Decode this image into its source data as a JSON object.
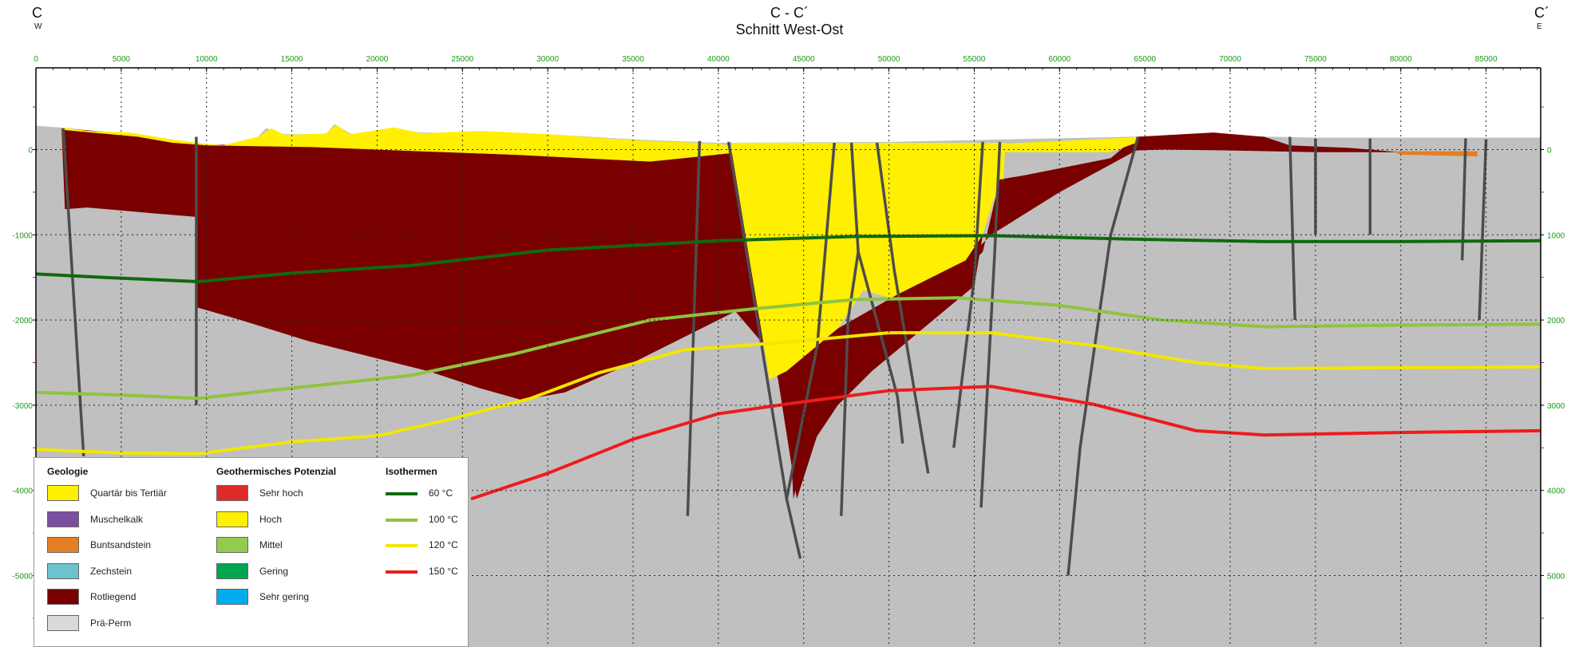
{
  "header": {
    "title": "C - C´",
    "subtitle": "Schnitt West-Ost",
    "left_label": "C",
    "left_dir": "W",
    "right_label": "C´",
    "right_dir": "E"
  },
  "section": {
    "x_range": [
      0,
      88200
    ],
    "depth_range": [
      -5850,
      1050
    ],
    "x_ticks": [
      0,
      5000,
      10000,
      15000,
      20000,
      25000,
      30000,
      35000,
      40000,
      45000,
      50000,
      55000,
      60000,
      65000,
      70000,
      75000,
      80000,
      85000
    ],
    "x_tick_labels": [
      "0",
      "5000",
      "10000",
      "15000",
      "20000",
      "25000",
      "30000",
      "35000",
      "40000",
      "45000",
      "50000",
      "55000",
      "60000",
      "65000",
      "70000",
      "75000",
      "80000",
      "85000"
    ],
    "depth_ticks": [
      0,
      -1000,
      -2000,
      -3000,
      -4000,
      -5000
    ],
    "depth_tick_labels": [
      "0",
      "-1000",
      "-2000",
      "-3000",
      "-4000",
      "-5000"
    ],
    "right_depth_tick_labels": [
      "0",
      "1000",
      "2000",
      "3000",
      "4000",
      "5000"
    ],
    "axis_label_color": "#1a9a1a",
    "grid": "dotted"
  },
  "geology": {
    "topography": [
      [
        0,
        280
      ],
      [
        2000,
        250
      ],
      [
        4000,
        200
      ],
      [
        6000,
        180
      ],
      [
        8000,
        100
      ],
      [
        11000,
        50
      ],
      [
        13000,
        150
      ],
      [
        13500,
        250
      ],
      [
        14500,
        180
      ],
      [
        17000,
        180
      ],
      [
        17500,
        300
      ],
      [
        18500,
        180
      ],
      [
        21000,
        250
      ],
      [
        22500,
        200
      ],
      [
        30000,
        180
      ],
      [
        35000,
        120
      ],
      [
        40000,
        80
      ],
      [
        50000,
        90
      ],
      [
        64000,
        150
      ],
      [
        66000,
        160
      ],
      [
        70000,
        160
      ],
      [
        75000,
        140
      ],
      [
        88200,
        140
      ]
    ],
    "rotliegend_polygon": [
      [
        1500,
        250
      ],
      [
        6000,
        180
      ],
      [
        8000,
        100
      ],
      [
        10000,
        60
      ],
      [
        16000,
        40
      ],
      [
        20000,
        0
      ],
      [
        28000,
        -60
      ],
      [
        30000,
        -80
      ],
      [
        32000,
        -100
      ],
      [
        36000,
        -140
      ],
      [
        38000,
        -100
      ],
      [
        40000,
        -40
      ],
      [
        40800,
        -40
      ],
      [
        42000,
        -1500
      ],
      [
        42800,
        -2700
      ],
      [
        47500,
        -2400
      ],
      [
        52000,
        -2100
      ],
      [
        54000,
        -1800
      ],
      [
        55500,
        -1400
      ],
      [
        56500,
        -900
      ],
      [
        58000,
        -600
      ],
      [
        63000,
        -150
      ],
      [
        64500,
        150
      ],
      [
        69000,
        200
      ],
      [
        72000,
        150
      ],
      [
        75000,
        50
      ],
      [
        77000,
        20
      ],
      [
        80000,
        -50
      ],
      [
        85000,
        -80
      ],
      [
        86000,
        100
      ],
      [
        88200,
        100
      ],
      [
        88200,
        -5850
      ],
      [
        0,
        -5850
      ],
      [
        0,
        250
      ],
      [
        1600,
        250
      ],
      [
        1700,
        -700
      ],
      [
        3000,
        -680
      ],
      [
        7000,
        -750
      ],
      [
        9400,
        -790
      ],
      [
        9400,
        -2900
      ],
      [
        9400,
        -1850
      ],
      [
        12000,
        -2000
      ],
      [
        16000,
        -2250
      ],
      [
        20000,
        -2450
      ],
      [
        23000,
        -2600
      ],
      [
        26000,
        -2800
      ],
      [
        28500,
        -2940
      ],
      [
        31000,
        -2850
      ],
      [
        35000,
        -2500
      ],
      [
        38000,
        -2200
      ],
      [
        41000,
        -1900
      ],
      [
        43000,
        -1800
      ],
      [
        44000,
        -1800
      ],
      [
        50000,
        -1500
      ],
      [
        55000,
        -900
      ],
      [
        58000,
        -600
      ]
    ],
    "yellow_basin": [
      [
        40800,
        80
      ],
      [
        56800,
        80
      ],
      [
        56700,
        -350
      ],
      [
        56000,
        -900
      ],
      [
        55200,
        -1000
      ],
      [
        54800,
        -1600
      ],
      [
        52000,
        -2000
      ],
      [
        49000,
        -1800
      ],
      [
        47000,
        -2000
      ],
      [
        43500,
        -2700
      ],
      [
        42000,
        -1500
      ],
      [
        40800,
        -40
      ]
    ],
    "yellow_band": [
      [
        1500,
        260
      ],
      [
        3000,
        220
      ],
      [
        5500,
        200
      ],
      [
        8000,
        120
      ],
      [
        9500,
        80
      ],
      [
        11000,
        50
      ],
      [
        13000,
        150
      ],
      [
        13800,
        250
      ],
      [
        14600,
        170
      ],
      [
        17000,
        190
      ],
      [
        17600,
        290
      ],
      [
        18400,
        180
      ],
      [
        21000,
        260
      ],
      [
        22600,
        190
      ],
      [
        26000,
        220
      ],
      [
        30000,
        180
      ],
      [
        35000,
        110
      ],
      [
        40000,
        70
      ],
      [
        40800,
        40
      ],
      [
        56800,
        70
      ],
      [
        62000,
        120
      ],
      [
        64000,
        140
      ],
      [
        64500,
        150
      ],
      [
        64500,
        80
      ],
      [
        63000,
        -30
      ],
      [
        56800,
        -30
      ],
      [
        56700,
        -350
      ],
      [
        45000,
        -30
      ],
      [
        40800,
        -40
      ],
      [
        36000,
        -140
      ],
      [
        32000,
        -100
      ],
      [
        28000,
        -60
      ],
      [
        20000,
        0
      ],
      [
        16000,
        30
      ],
      [
        10000,
        50
      ],
      [
        8000,
        80
      ],
      [
        6000,
        150
      ],
      [
        1600,
        230
      ]
    ],
    "zechstein_polygon": [
      [
        79500,
        -30
      ],
      [
        85000,
        -30
      ],
      [
        85000,
        -80
      ],
      [
        80000,
        -60
      ]
    ],
    "faults": [
      [
        [
          1600,
          250
        ],
        [
          2800,
          -3600
        ]
      ],
      [
        [
          9400,
          150
        ],
        [
          9400,
          -3000
        ]
      ],
      [
        [
          38900,
          100
        ],
        [
          38200,
          -4300
        ]
      ],
      [
        [
          40600,
          90
        ],
        [
          44000,
          -4100
        ],
        [
          44800,
          -4800
        ]
      ],
      [
        [
          46800,
          80
        ],
        [
          45800,
          -2300
        ],
        [
          44000,
          -4100
        ]
      ],
      [
        [
          47800,
          80
        ],
        [
          48200,
          -1200
        ],
        [
          50500,
          -2900
        ],
        [
          50800,
          -3450
        ]
      ],
      [
        [
          49300,
          80
        ],
        [
          50300,
          -1400
        ],
        [
          52300,
          -3800
        ]
      ],
      [
        [
          48200,
          -1200
        ],
        [
          47600,
          -2000
        ],
        [
          47200,
          -4300
        ]
      ],
      [
        [
          55500,
          90
        ],
        [
          55000,
          -1500
        ],
        [
          53800,
          -3500
        ]
      ],
      [
        [
          56500,
          90
        ],
        [
          56200,
          -1200
        ],
        [
          55400,
          -4200
        ]
      ],
      [
        [
          64600,
          150
        ],
        [
          63000,
          -1000
        ],
        [
          61200,
          -3500
        ],
        [
          60500,
          -5000
        ]
      ],
      [
        [
          73500,
          150
        ],
        [
          73800,
          -2000
        ]
      ],
      [
        [
          75000,
          130
        ],
        [
          75000,
          -1000
        ]
      ],
      [
        [
          78200,
          130
        ],
        [
          78200,
          -1000
        ]
      ],
      [
        [
          83800,
          130
        ],
        [
          83600,
          -1300
        ]
      ],
      [
        [
          85000,
          120
        ],
        [
          84600,
          -2000
        ]
      ]
    ]
  },
  "isotherms": [
    {
      "name": "60 °C",
      "color": "#0f6a0f",
      "points": [
        [
          0,
          -1460
        ],
        [
          4000,
          -1500
        ],
        [
          9500,
          -1550
        ],
        [
          15000,
          -1450
        ],
        [
          22000,
          -1360
        ],
        [
          30000,
          -1180
        ],
        [
          40000,
          -1070
        ],
        [
          48000,
          -1020
        ],
        [
          56000,
          -1010
        ],
        [
          64000,
          -1050
        ],
        [
          72000,
          -1080
        ],
        [
          80000,
          -1080
        ],
        [
          88200,
          -1070
        ]
      ]
    },
    {
      "name": "100 °C",
      "color": "#8fc43f",
      "points": [
        [
          0,
          -2850
        ],
        [
          5000,
          -2880
        ],
        [
          9500,
          -2920
        ],
        [
          15000,
          -2800
        ],
        [
          22000,
          -2650
        ],
        [
          28000,
          -2400
        ],
        [
          36000,
          -2000
        ],
        [
          42000,
          -1870
        ],
        [
          48000,
          -1760
        ],
        [
          54000,
          -1740
        ],
        [
          60000,
          -1830
        ],
        [
          66000,
          -2000
        ],
        [
          72000,
          -2080
        ],
        [
          80000,
          -2060
        ],
        [
          88200,
          -2050
        ]
      ]
    },
    {
      "name": "120 °C",
      "color": "#f2e600",
      "points": [
        [
          0,
          -3520
        ],
        [
          5000,
          -3560
        ],
        [
          9500,
          -3570
        ],
        [
          15000,
          -3430
        ],
        [
          20000,
          -3360
        ],
        [
          24000,
          -3180
        ],
        [
          29000,
          -2920
        ],
        [
          33000,
          -2620
        ],
        [
          38000,
          -2350
        ],
        [
          44000,
          -2260
        ],
        [
          50000,
          -2150
        ],
        [
          56000,
          -2150
        ],
        [
          62000,
          -2300
        ],
        [
          68000,
          -2500
        ],
        [
          72000,
          -2570
        ],
        [
          80000,
          -2560
        ],
        [
          88200,
          -2550
        ]
      ]
    },
    {
      "name": "150 °C",
      "color": "#ee1c1c",
      "points": [
        [
          25500,
          -4100
        ],
        [
          30000,
          -3800
        ],
        [
          35000,
          -3400
        ],
        [
          40000,
          -3100
        ],
        [
          45000,
          -2960
        ],
        [
          50000,
          -2830
        ],
        [
          56000,
          -2780
        ],
        [
          62000,
          -2990
        ],
        [
          68000,
          -3300
        ],
        [
          72000,
          -3350
        ],
        [
          80000,
          -3320
        ],
        [
          88200,
          -3300
        ]
      ]
    }
  ],
  "colors": {
    "pra_perm": "#c0c0c0",
    "rotliegend": "#7a0000",
    "quartar": "#ffef00",
    "buntsandstein": "#e67e22",
    "fault": "#4d4d4d",
    "grid": "#222222"
  },
  "legend": {
    "geologie": {
      "title": "Geologie",
      "items": [
        {
          "label": "Quartär bis Tertiär",
          "color": "#ffef00"
        },
        {
          "label": "Muschelkalk",
          "color": "#7b4fa0"
        },
        {
          "label": "Buntsandstein",
          "color": "#e67e22"
        },
        {
          "label": "Zechstein",
          "color": "#6cc3ce"
        },
        {
          "label": "Rotliegend",
          "color": "#7a0000"
        },
        {
          "label": "Prä-Perm",
          "color": "#d9d9d9"
        }
      ]
    },
    "potenzial": {
      "title": "Geothermisches Potenzial",
      "items": [
        {
          "label": "Sehr hoch",
          "color": "#e02a2a"
        },
        {
          "label": "Hoch",
          "color": "#ffef00"
        },
        {
          "label": "Mittel",
          "color": "#92cc4f"
        },
        {
          "label": "Gering",
          "color": "#00a551"
        },
        {
          "label": "Sehr gering",
          "color": "#00adef"
        }
      ]
    },
    "isothermen": {
      "title": "Isothermen",
      "items": [
        {
          "label": "60 °C",
          "color": "#0f6a0f"
        },
        {
          "label": "100 °C",
          "color": "#8fc43f"
        },
        {
          "label": "120 °C",
          "color": "#f2e600"
        },
        {
          "label": "150 °C",
          "color": "#ee1c1c"
        }
      ]
    }
  }
}
